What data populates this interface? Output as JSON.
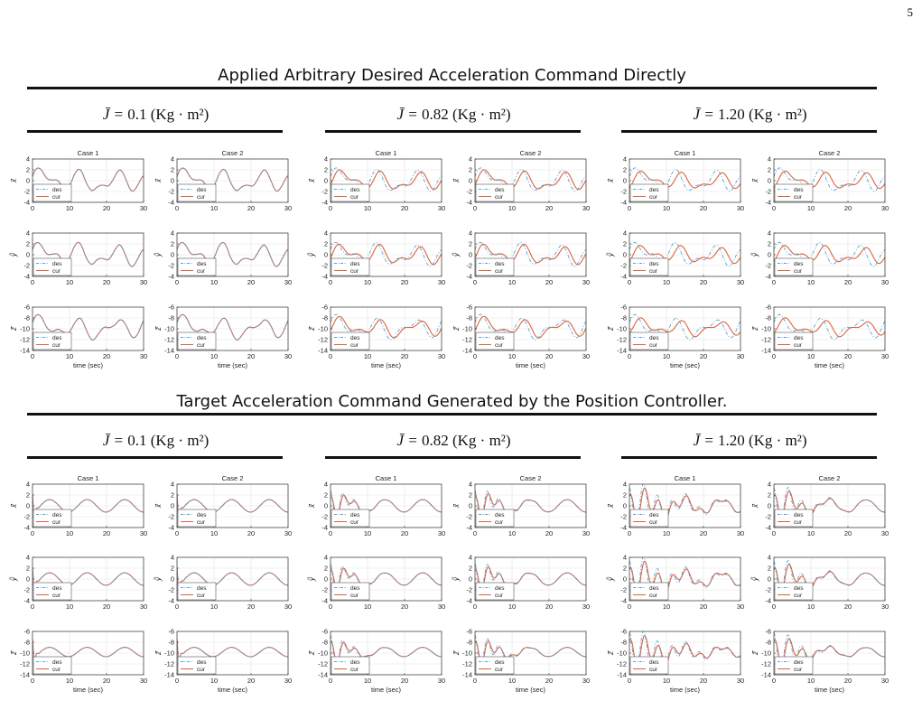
{
  "page_number": "5",
  "sections": [
    {
      "title": "Applied Arbitrary Desired Acceleration Command Directly",
      "groups": [
        {
          "prefix": "J̄ = ",
          "value": "0.1",
          "unit": " (Kg · m²)"
        },
        {
          "prefix": "J̄ = ",
          "value": "0.82",
          "unit": " (Kg · m²)"
        },
        {
          "prefix": "J̄ = ",
          "value": "1.20",
          "unit": " (Kg · m²)"
        }
      ]
    },
    {
      "title": "Target Acceleration Command Generated by the Position Controller.",
      "groups": [
        {
          "prefix": "J̄ = ",
          "value": "0.1",
          "unit": " (Kg · m²)"
        },
        {
          "prefix": "J̄ = ",
          "value": "0.82",
          "unit": " (Kg · m²)"
        },
        {
          "prefix": "J̄ = ",
          "value": "1.20",
          "unit": " (Kg · m²)"
        }
      ]
    }
  ],
  "chart_data": {
    "type": "line",
    "subplot_titles": [
      "Case 1",
      "Case 2"
    ],
    "xlabel": "time (sec)",
    "xlim": [
      0,
      30
    ],
    "x_ticks": [
      0,
      10,
      20,
      30
    ],
    "rows": [
      {
        "ylabel": "ẍ̃",
        "ylim": [
          -4,
          4
        ],
        "y_ticks": [
          4,
          2,
          0,
          -2,
          -4
        ],
        "baseline": 0,
        "amp": 2.6
      },
      {
        "ylabel": "ÿ̃",
        "ylim": [
          -4,
          4
        ],
        "y_ticks": [
          4,
          2,
          0,
          -2,
          -4
        ],
        "baseline": 0,
        "amp": 2.6
      },
      {
        "ylabel": "z̃̈",
        "ylim": [
          -14,
          -6
        ],
        "y_ticks": [
          -6,
          -8,
          -10,
          -12,
          -14
        ],
        "baseline": -9.8,
        "amp": 2.6
      }
    ],
    "legend": {
      "entries": [
        "des",
        "cur"
      ],
      "location": "lower-left"
    },
    "series_styles": {
      "des": {
        "color": "#4da6e0",
        "dash": "dash-dot"
      },
      "cur": {
        "color": "#e0623a",
        "dash": "solid"
      }
    },
    "grid": true
  }
}
